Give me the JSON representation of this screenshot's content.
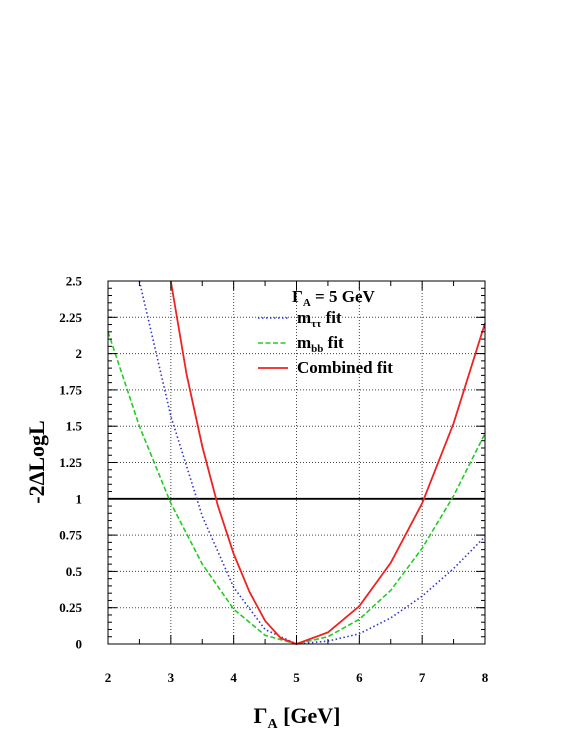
{
  "chart_data": {
    "type": "line",
    "xlabel": "Γ",
    "xlabel_sub": "A",
    "xlabel_unit": " [GeV]",
    "ylabel": "-2ΔLogL",
    "xlim": [
      2,
      8
    ],
    "ylim": [
      0,
      2.5
    ],
    "grid": true,
    "x_ticks": [
      2,
      3,
      4,
      5,
      6,
      7,
      8
    ],
    "x_tick_labels": [
      "2",
      "3",
      "4",
      "5",
      "6",
      "7",
      "8"
    ],
    "y_ticks": [
      0,
      0.25,
      0.5,
      0.75,
      1,
      1.25,
      1.5,
      1.75,
      2,
      2.25,
      2.5
    ],
    "y_tick_labels": [
      "0",
      "0.25",
      "0.5",
      "0.75",
      "1",
      "1.25",
      "1.5",
      "1.75",
      "2",
      "2.25",
      "2.5"
    ],
    "legend_placement": "top-right",
    "legend_title": {
      "main": "Γ",
      "sub": "A",
      "rest": " = 5 GeV"
    },
    "reference_line": {
      "y": 1,
      "color": "#000000"
    },
    "series": [
      {
        "name": "m",
        "name_sub": "ττ",
        "name_rest": " fit",
        "color": "#3333cc",
        "style": "dotted",
        "x": [
          2.5,
          3.0,
          3.5,
          4.0,
          4.5,
          5.0,
          5.5,
          6.0,
          6.5,
          7.0,
          7.5,
          8.0
        ],
        "y": [
          2.5,
          1.57,
          0.88,
          0.39,
          0.1,
          0.0,
          0.02,
          0.07,
          0.18,
          0.33,
          0.52,
          0.74
        ]
      },
      {
        "name": "m",
        "name_sub": "bb",
        "name_rest": " fit",
        "color": "#22cc22",
        "style": "dashed",
        "x": [
          2.0,
          2.5,
          3.0,
          3.5,
          4.0,
          4.5,
          5.0,
          5.5,
          6.0,
          6.5,
          7.0,
          7.5,
          8.0
        ],
        "y": [
          2.15,
          1.5,
          0.97,
          0.55,
          0.24,
          0.06,
          0.0,
          0.05,
          0.17,
          0.37,
          0.66,
          1.02,
          1.45
        ]
      },
      {
        "name": "Combined fit",
        "name_sub": "",
        "name_rest": "",
        "color": "#ee2222",
        "style": "solid",
        "x": [
          3.0,
          3.25,
          3.5,
          3.75,
          4.0,
          4.25,
          4.5,
          4.75,
          5.0,
          5.5,
          6.0,
          6.5,
          7.0,
          7.5,
          8.0
        ],
        "y": [
          2.5,
          1.86,
          1.36,
          0.95,
          0.62,
          0.36,
          0.16,
          0.04,
          0.0,
          0.08,
          0.26,
          0.56,
          0.97,
          1.52,
          2.21
        ]
      }
    ]
  }
}
